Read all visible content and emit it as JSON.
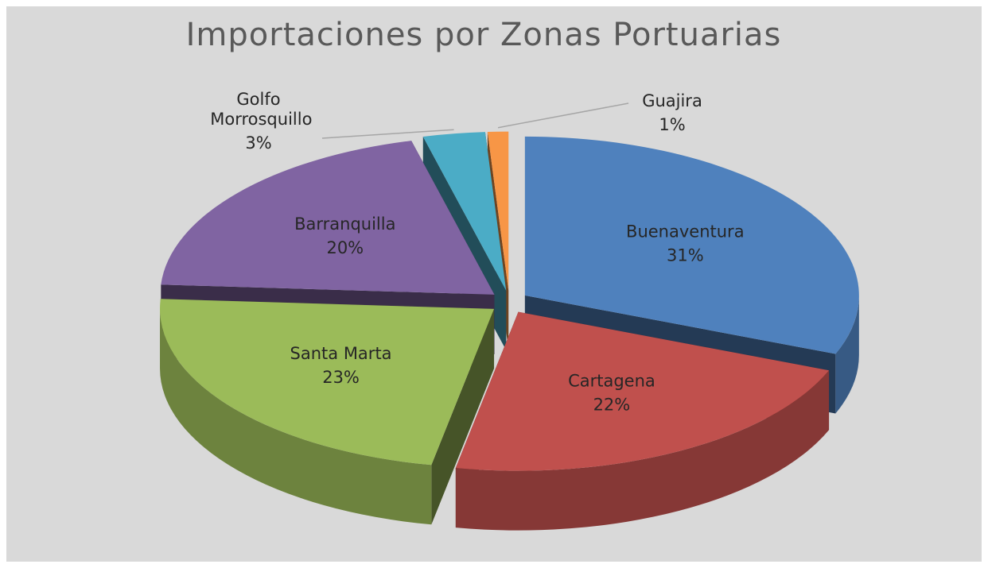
{
  "chart_data": {
    "type": "pie3d",
    "title": "Importaciones por Zonas Portuarias",
    "categories": [
      "Buenaventura",
      "Cartagena",
      "Santa Marta",
      "Barranquilla",
      "Golfo Morrosquillo",
      "Guajira"
    ],
    "values": [
      31,
      22,
      23,
      20,
      3,
      1
    ],
    "value_labels": [
      "31%",
      "22%",
      "23%",
      "20%",
      "3%",
      "1%"
    ],
    "colors": [
      "#4f81bd",
      "#c0504d",
      "#9bbb59",
      "#8064a2",
      "#4bacc6",
      "#f79646"
    ]
  }
}
